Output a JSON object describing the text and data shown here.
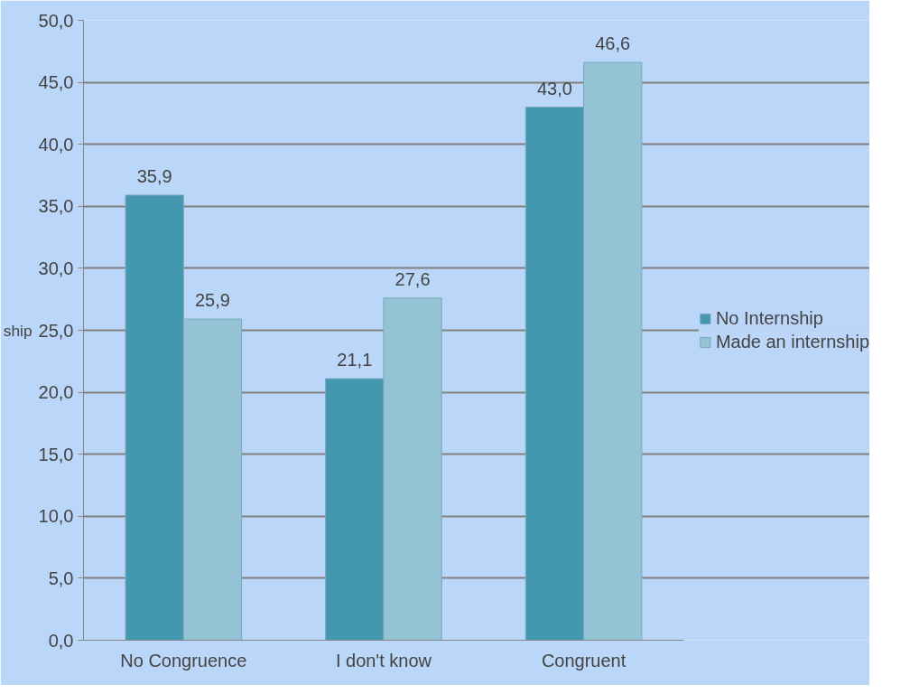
{
  "chart_data": {
    "type": "bar",
    "categories": [
      "No Congruence",
      "I don't know",
      "Congruent"
    ],
    "series": [
      {
        "name": "No Internship",
        "color": "#4398b0",
        "values": [
          35.9,
          21.1,
          43.0
        ],
        "value_labels": [
          "35,9",
          "21,1",
          "43,0"
        ]
      },
      {
        "name": "Made an internship",
        "color": "#93c3d5",
        "values": [
          25.9,
          27.6,
          46.6
        ],
        "value_labels": [
          "25,9",
          "27,6",
          "46,6"
        ]
      }
    ],
    "ylim": [
      0,
      50
    ],
    "yticks": [
      {
        "value": 0,
        "label": "0,0"
      },
      {
        "value": 5,
        "label": "5,0"
      },
      {
        "value": 10,
        "label": "10,0"
      },
      {
        "value": 15,
        "label": "15,0"
      },
      {
        "value": 20,
        "label": "20,0"
      },
      {
        "value": 25,
        "label": "25,0"
      },
      {
        "value": 30,
        "label": "30,0"
      },
      {
        "value": 35,
        "label": "35,0"
      },
      {
        "value": 40,
        "label": "40,0"
      },
      {
        "value": 45,
        "label": "45,0"
      },
      {
        "value": 50,
        "label": "50,0"
      }
    ],
    "annotations": [
      "ship"
    ],
    "grid": "y",
    "legend": "right"
  }
}
